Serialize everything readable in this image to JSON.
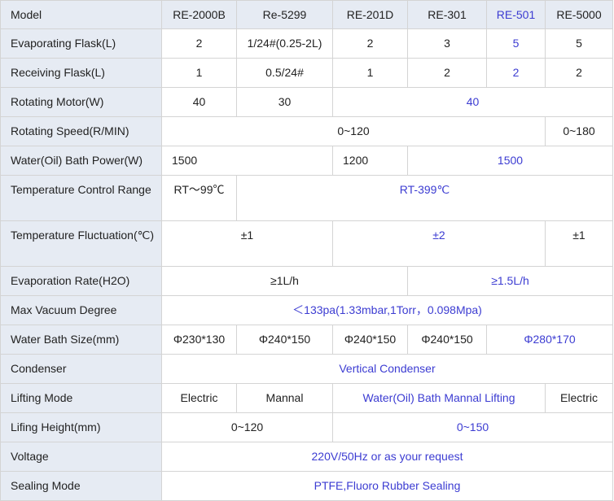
{
  "colors": {
    "header_bg": "#e6ebf3",
    "highlight_text": "#3c3cd2",
    "border": "#d4d4d4"
  },
  "table": {
    "header": {
      "label": "Model",
      "models": [
        {
          "text": "RE-2000B"
        },
        {
          "text": "Re-5299"
        },
        {
          "text": "RE-201D"
        },
        {
          "text": "RE-301"
        },
        {
          "text": "RE-501",
          "blue": true
        },
        {
          "text": "RE-5000"
        }
      ]
    },
    "rows": [
      {
        "label": "Evaporating Flask(L)",
        "cells": [
          {
            "text": "2"
          },
          {
            "text": "1/24#(0.25-2L)"
          },
          {
            "text": "2"
          },
          {
            "text": "3"
          },
          {
            "text": "5",
            "blue": true
          },
          {
            "text": "5"
          }
        ]
      },
      {
        "label": "Receiving Flask(L)",
        "cells": [
          {
            "text": "1"
          },
          {
            "text": "0.5/24#"
          },
          {
            "text": "1"
          },
          {
            "text": "2"
          },
          {
            "text": "2",
            "blue": true
          },
          {
            "text": "2"
          }
        ]
      },
      {
        "label": "Rotating Motor(W)",
        "cells": [
          {
            "text": "40"
          },
          {
            "text": "30"
          },
          {
            "text": "40",
            "span": 4,
            "blue": true
          }
        ]
      },
      {
        "label": "Rotating Speed(R/MIN)",
        "cells": [
          {
            "text": "0~120",
            "span": 5
          },
          {
            "text": "0~180"
          }
        ]
      },
      {
        "label": "Water(Oil) Bath Power(W)",
        "cells": [
          {
            "text": "1500",
            "span": 2,
            "align": "left"
          },
          {
            "text": "1200",
            "align": "left"
          },
          {
            "text": "1500",
            "span": 3,
            "blue": true
          }
        ]
      },
      {
        "label": "Temperature Control Range",
        "tall": true,
        "cells": [
          {
            "text": "RT～99℃"
          },
          {
            "text": "RT-399℃",
            "span": 5,
            "blue": true
          }
        ]
      },
      {
        "label": "Temperature Fluctuation(℃)",
        "tall": true,
        "cells": [
          {
            "text": "±1",
            "span": 2
          },
          {
            "text": "±2",
            "span": 3,
            "blue": true
          },
          {
            "text": "±1"
          }
        ]
      },
      {
        "label": "Evaporation Rate(H2O)",
        "cells": [
          {
            "text": "≥1L/h",
            "span": 3
          },
          {
            "text": "≥1.5L/h",
            "span": 3,
            "blue": true
          }
        ]
      },
      {
        "label": "Max Vacuum Degree",
        "cells": [
          {
            "text": "＜133pa(1.33mbar,1Torr，0.098Mpa)",
            "span": 6,
            "blue": true
          }
        ]
      },
      {
        "label": "Water Bath Size(mm)",
        "cells": [
          {
            "text": "Φ230*130"
          },
          {
            "text": "Φ240*150"
          },
          {
            "text": "Φ240*150"
          },
          {
            "text": "Φ240*150"
          },
          {
            "text": "Φ280*170",
            "span": 2,
            "blue": true
          }
        ]
      },
      {
        "label": "Condenser",
        "cells": [
          {
            "text": "Vertical Condenser",
            "span": 6,
            "blue": true
          }
        ]
      },
      {
        "label": "Lifting Mode",
        "cells": [
          {
            "text": "Electric"
          },
          {
            "text": "Mannal"
          },
          {
            "text": "Water(Oil) Bath Mannal Lifting",
            "span": 3,
            "blue": true
          },
          {
            "text": "Electric"
          }
        ]
      },
      {
        "label": "Lifing Height(mm)",
        "cells": [
          {
            "text": "0~120",
            "span": 2
          },
          {
            "text": "0~150",
            "span": 4,
            "blue": true
          }
        ]
      },
      {
        "label": "Voltage",
        "cells": [
          {
            "text": "220V/50Hz or as your request",
            "span": 6,
            "blue": true
          }
        ]
      },
      {
        "label": "Sealing Mode",
        "cells": [
          {
            "text": "PTFE,Fluoro Rubber Sealing",
            "span": 6,
            "blue": true
          }
        ]
      }
    ]
  }
}
